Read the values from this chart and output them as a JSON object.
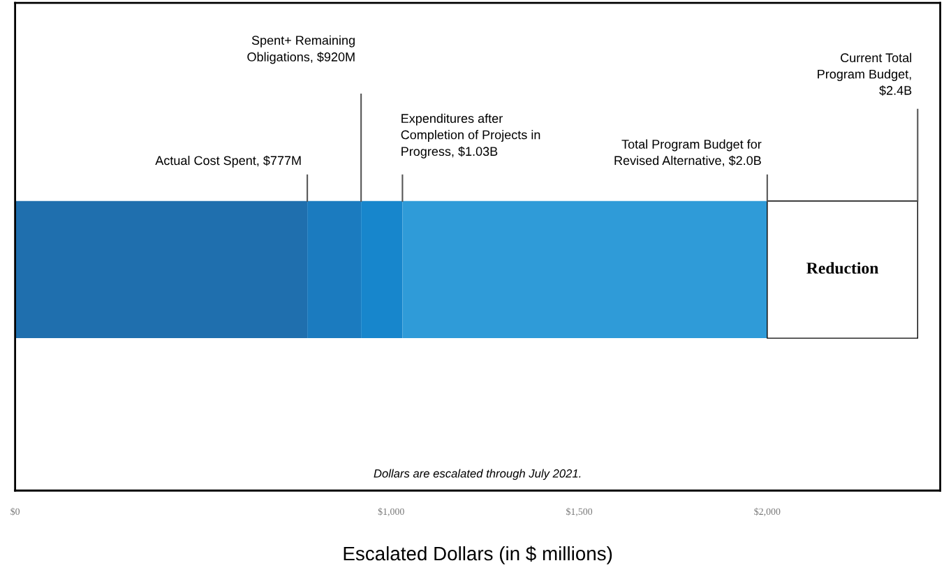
{
  "chart_data": {
    "type": "bar",
    "orientation": "horizontal",
    "stacked": true,
    "categories": [
      null
    ],
    "series": [
      {
        "color": "#1f6fae",
        "values": [
          777
        ]
      },
      {
        "color": "#1b7bbf",
        "values": [
          143
        ]
      },
      {
        "color": "#1786cc",
        "values": [
          110
        ]
      },
      {
        "color": "#2f9bd8",
        "values": [
          970
        ]
      },
      {
        "color": "#ffffff",
        "values": [
          400
        ],
        "value_labels": [
          "Reduction"
        ]
      }
    ],
    "xlim": [
      0,
      2460
    ],
    "xticks": [
      {
        "value": 0,
        "label": "$0"
      },
      {
        "value": 1000,
        "label": "$1,000"
      },
      {
        "value": 1500,
        "label": "$1,500"
      },
      {
        "value": 2000,
        "label": "$2,000"
      }
    ],
    "xlabel": "Escalated Dollars (in $ millions)",
    "tick_labels": "x",
    "grid": false,
    "ref_lines": [
      {
        "axis": "x",
        "value": 777,
        "label": "Actual Cost Spent, $777M",
        "color": "#555555"
      },
      {
        "axis": "x",
        "value": 920,
        "label": "Spent+ Remaining\nObligations, $920M",
        "color": "#555555"
      },
      {
        "axis": "x",
        "value": 1030,
        "label": "Expenditures after\nCompletion of Projects in\nProgress, $1.03B",
        "color": "#555555"
      },
      {
        "axis": "x",
        "value": 2000,
        "label": "Total Program Budget for\nRevised Alternative, $2.0B",
        "color": "#555555"
      },
      {
        "axis": "x",
        "value": 2400,
        "label": "Current Total\nProgram Budget,\n$2.4B",
        "color": "#555555"
      }
    ],
    "annotations": [
      "Dollars are escalated through July 2021."
    ]
  }
}
